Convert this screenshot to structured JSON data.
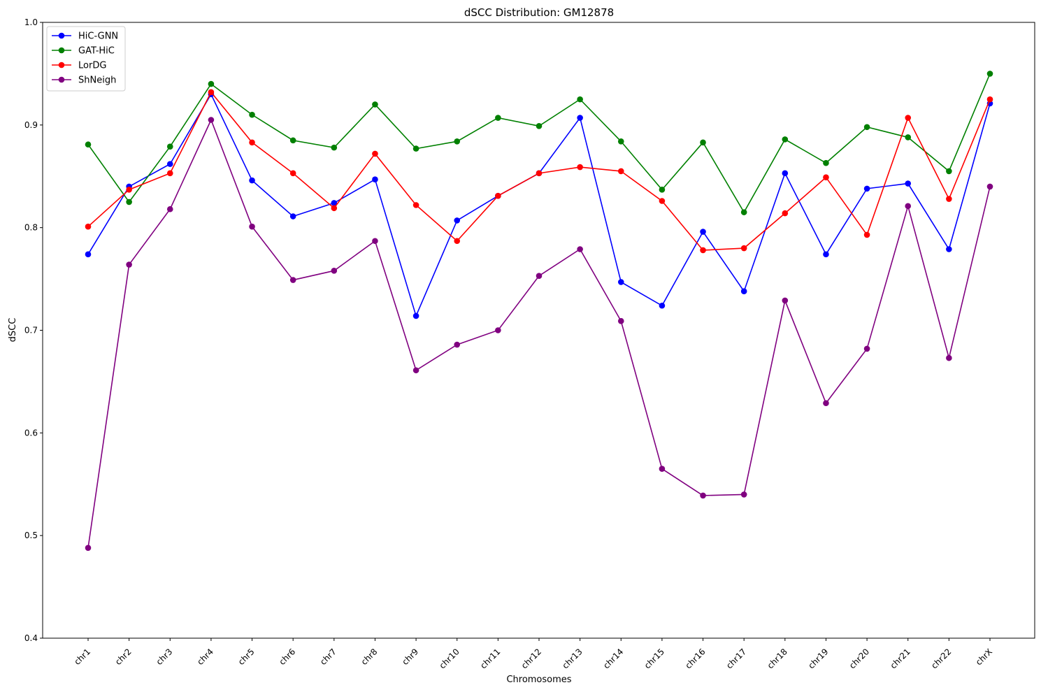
{
  "chart_data": {
    "type": "line",
    "title": "dSCC Distribution: GM12878",
    "xlabel": "Chromosomes",
    "ylabel": "dSCC",
    "ylim": [
      0.4,
      1.0
    ],
    "yticks": [
      "0.4",
      "0.5",
      "0.6",
      "0.7",
      "0.8",
      "0.9",
      "1.0"
    ],
    "grid": false,
    "legend_position": "top-left",
    "categories": [
      "chr1",
      "chr2",
      "chr3",
      "chr4",
      "chr5",
      "chr6",
      "chr7",
      "chr8",
      "chr9",
      "chr10",
      "chr11",
      "chr12",
      "chr13",
      "chr14",
      "chr15",
      "chr16",
      "chr17",
      "chr18",
      "chr19",
      "chr20",
      "chr21",
      "chr22",
      "chrX"
    ],
    "series": [
      {
        "name": "HiC-GNN",
        "color": "#0000ff",
        "values": [
          0.774,
          0.84,
          0.862,
          0.93,
          0.846,
          0.811,
          0.824,
          0.847,
          0.714,
          0.807,
          0.831,
          0.853,
          0.907,
          0.747,
          0.724,
          0.796,
          0.738,
          0.853,
          0.774,
          0.838,
          0.843,
          0.779,
          0.921
        ]
      },
      {
        "name": "GAT-HiC",
        "color": "#008000",
        "values": [
          0.881,
          0.825,
          0.879,
          0.94,
          0.91,
          0.885,
          0.878,
          0.92,
          0.877,
          0.884,
          0.907,
          0.899,
          0.925,
          0.884,
          0.837,
          0.883,
          0.815,
          0.886,
          0.863,
          0.898,
          0.888,
          0.855,
          0.95
        ]
      },
      {
        "name": "LorDG",
        "color": "#ff0000",
        "values": [
          0.801,
          0.837,
          0.853,
          0.932,
          0.883,
          0.853,
          0.819,
          0.872,
          0.822,
          0.787,
          0.831,
          0.853,
          0.859,
          0.855,
          0.826,
          0.778,
          0.78,
          0.814,
          0.849,
          0.793,
          0.907,
          0.828,
          0.925
        ]
      },
      {
        "name": "ShNeigh",
        "color": "#800080",
        "values": [
          0.488,
          0.764,
          0.818,
          0.905,
          0.801,
          0.749,
          0.758,
          0.787,
          0.661,
          0.686,
          0.7,
          0.753,
          0.779,
          0.709,
          0.565,
          0.539,
          0.54,
          0.729,
          0.629,
          0.682,
          0.821,
          0.673,
          0.84
        ]
      }
    ]
  }
}
